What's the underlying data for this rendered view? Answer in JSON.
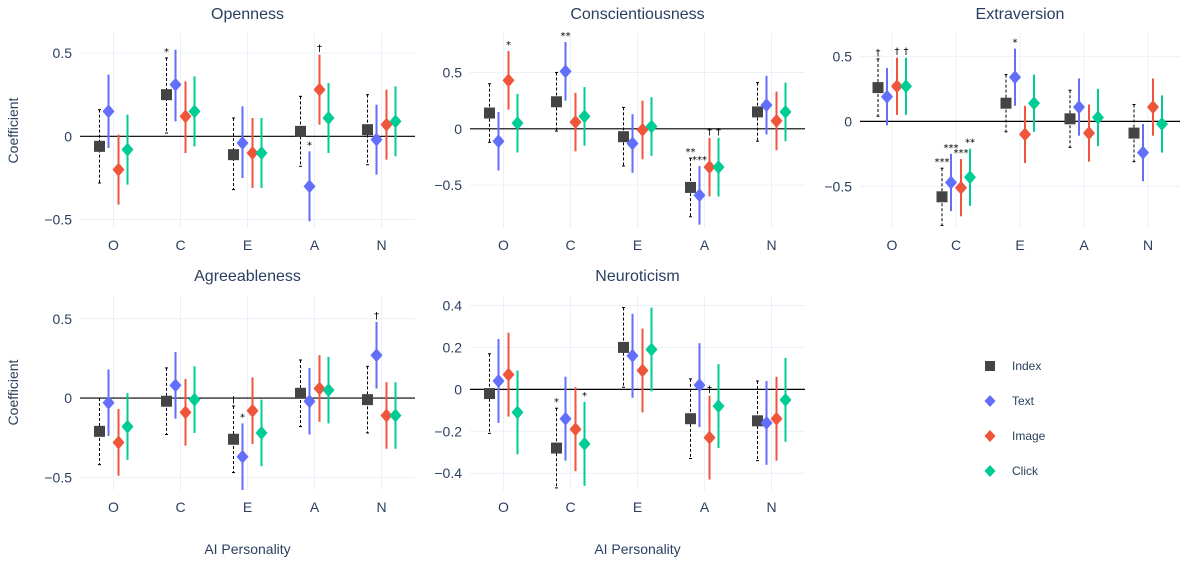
{
  "colors": {
    "Index": "#444444",
    "Text": "#636efa",
    "Image": "#ef553b",
    "Click": "#00cc96",
    "grid": "#ebf0f8",
    "zero": "#000000",
    "text": "#2a3f5f"
  },
  "chart_data": {
    "type": "scatter",
    "xlabel": "AI Personality",
    "ylabel": "Coefficient",
    "series_names": [
      "Index",
      "Text",
      "Image",
      "Click"
    ],
    "categories": [
      "O",
      "C",
      "E",
      "A",
      "N"
    ],
    "legend": {
      "placement": "right",
      "entries": [
        "Index",
        "Text",
        "Image",
        "Click"
      ]
    },
    "panels": [
      {
        "title": "Openness",
        "ylim": [
          -0.55,
          0.62
        ],
        "yticks": [
          0.5,
          0,
          -0.5
        ],
        "ytick_labels": [
          "0.5",
          "0",
          "−0.5"
        ],
        "show_ylabel": true,
        "show_xlabel": false,
        "series": [
          {
            "name": "Index",
            "values": [
              -0.06,
              0.25,
              -0.11,
              0.03,
              0.04
            ],
            "lo": [
              -0.28,
              0.02,
              -0.32,
              -0.18,
              -0.17
            ],
            "hi": [
              0.16,
              0.47,
              0.11,
              0.24,
              0.25
            ],
            "sig": [
              "",
              "*",
              "",
              "",
              ""
            ]
          },
          {
            "name": "Text",
            "values": [
              0.15,
              0.31,
              -0.04,
              -0.3,
              -0.02
            ],
            "lo": [
              -0.07,
              0.09,
              -0.25,
              -0.51,
              -0.23
            ],
            "hi": [
              0.37,
              0.52,
              0.18,
              -0.09,
              0.19
            ],
            "sig": [
              "",
              "",
              "",
              "*",
              ""
            ]
          },
          {
            "name": "Image",
            "values": [
              -0.2,
              0.12,
              -0.1,
              0.28,
              0.07
            ],
            "lo": [
              -0.41,
              -0.1,
              -0.31,
              0.07,
              -0.14
            ],
            "hi": [
              0.01,
              0.33,
              0.11,
              0.49,
              0.28
            ],
            "sig": [
              "",
              "",
              "",
              "†",
              ""
            ]
          },
          {
            "name": "Click",
            "values": [
              -0.08,
              0.15,
              -0.1,
              0.11,
              0.09
            ],
            "lo": [
              -0.29,
              -0.06,
              -0.31,
              -0.1,
              -0.12
            ],
            "hi": [
              0.13,
              0.36,
              0.11,
              0.32,
              0.3
            ],
            "sig": [
              "",
              "",
              "",
              "",
              ""
            ]
          }
        ]
      },
      {
        "title": "Conscientiousness",
        "ylim": [
          -0.88,
          0.85
        ],
        "yticks": [
          0.5,
          0,
          -0.5
        ],
        "ytick_labels": [
          "0.5",
          "0",
          "−0.5"
        ],
        "show_ylabel": false,
        "show_xlabel": false,
        "series": [
          {
            "name": "Index",
            "values": [
              0.14,
              0.24,
              -0.07,
              -0.52,
              0.15
            ],
            "lo": [
              -0.12,
              -0.02,
              -0.33,
              -0.78,
              -0.11
            ],
            "hi": [
              0.4,
              0.5,
              0.19,
              -0.26,
              0.41
            ],
            "sig": [
              "",
              "",
              "",
              "**",
              ""
            ]
          },
          {
            "name": "Text",
            "values": [
              -0.11,
              0.51,
              -0.13,
              -0.59,
              0.21
            ],
            "lo": [
              -0.37,
              0.25,
              -0.39,
              -0.85,
              -0.05
            ],
            "hi": [
              0.15,
              0.77,
              0.13,
              -0.33,
              0.47
            ],
            "sig": [
              "",
              "**",
              "",
              "***",
              ""
            ]
          },
          {
            "name": "Image",
            "values": [
              0.43,
              0.06,
              -0.01,
              -0.34,
              0.07
            ],
            "lo": [
              0.17,
              -0.2,
              -0.27,
              -0.6,
              -0.19
            ],
            "hi": [
              0.69,
              0.32,
              0.25,
              -0.08,
              0.33
            ],
            "sig": [
              "*",
              "",
              "",
              "†",
              ""
            ]
          },
          {
            "name": "Click",
            "values": [
              0.05,
              0.11,
              0.02,
              -0.34,
              0.15
            ],
            "lo": [
              -0.21,
              -0.15,
              -0.24,
              -0.6,
              -0.11
            ],
            "hi": [
              0.31,
              0.37,
              0.28,
              -0.08,
              0.41
            ],
            "sig": [
              "",
              "",
              "",
              "†",
              ""
            ]
          }
        ]
      },
      {
        "title": "Extraversion",
        "ylim": [
          -0.82,
          0.68
        ],
        "yticks": [
          0.5,
          0,
          -0.5
        ],
        "ytick_labels": [
          "0.5",
          "0",
          "−0.5"
        ],
        "show_ylabel": false,
        "show_xlabel": false,
        "series": [
          {
            "name": "Index",
            "values": [
              0.26,
              -0.58,
              0.14,
              0.02,
              -0.09
            ],
            "lo": [
              0.04,
              -0.8,
              -0.08,
              -0.2,
              -0.31
            ],
            "hi": [
              0.48,
              -0.36,
              0.36,
              0.24,
              0.13
            ],
            "sig": [
              "†",
              "***",
              "",
              "",
              ""
            ]
          },
          {
            "name": "Text",
            "values": [
              0.19,
              -0.47,
              0.34,
              0.11,
              -0.24
            ],
            "lo": [
              -0.03,
              -0.69,
              0.12,
              -0.11,
              -0.46
            ],
            "hi": [
              0.41,
              -0.25,
              0.56,
              0.33,
              -0.02
            ],
            "sig": [
              "",
              "***",
              "*",
              "",
              ""
            ]
          },
          {
            "name": "Image",
            "values": [
              0.27,
              -0.51,
              -0.1,
              -0.09,
              0.11
            ],
            "lo": [
              0.05,
              -0.73,
              -0.32,
              -0.31,
              -0.11
            ],
            "hi": [
              0.49,
              -0.29,
              0.12,
              0.13,
              0.33
            ],
            "sig": [
              "†",
              "***",
              "",
              "",
              ""
            ]
          },
          {
            "name": "Click",
            "values": [
              0.27,
              -0.43,
              0.14,
              0.03,
              -0.02
            ],
            "lo": [
              0.05,
              -0.65,
              -0.08,
              -0.19,
              -0.24
            ],
            "hi": [
              0.49,
              -0.21,
              0.36,
              0.25,
              0.2
            ],
            "sig": [
              "†",
              "**",
              "",
              "",
              ""
            ]
          }
        ]
      },
      {
        "title": "Agreeableness",
        "ylim": [
          -0.58,
          0.65
        ],
        "yticks": [
          0.5,
          0,
          -0.5
        ],
        "ytick_labels": [
          "0.5",
          "0",
          "−0.5"
        ],
        "show_ylabel": true,
        "show_xlabel": true,
        "series": [
          {
            "name": "Index",
            "values": [
              -0.21,
              -0.02,
              -0.26,
              0.03,
              -0.01
            ],
            "lo": [
              -0.42,
              -0.23,
              -0.47,
              -0.18,
              -0.22
            ],
            "hi": [
              0.0,
              0.19,
              -0.05,
              0.24,
              0.2
            ],
            "sig": [
              "",
              "",
              "†",
              "",
              ""
            ]
          },
          {
            "name": "Text",
            "values": [
              -0.03,
              0.08,
              -0.37,
              -0.02,
              0.27
            ],
            "lo": [
              -0.24,
              -0.13,
              -0.58,
              -0.23,
              0.06
            ],
            "hi": [
              0.18,
              0.29,
              -0.16,
              0.19,
              0.48
            ],
            "sig": [
              "",
              "",
              "*",
              "",
              "†"
            ]
          },
          {
            "name": "Image",
            "values": [
              -0.28,
              -0.09,
              -0.08,
              0.06,
              -0.11
            ],
            "lo": [
              -0.49,
              -0.3,
              -0.29,
              -0.15,
              -0.32
            ],
            "hi": [
              -0.07,
              0.12,
              0.13,
              0.27,
              0.1
            ],
            "sig": [
              "",
              "",
              "",
              "",
              ""
            ]
          },
          {
            "name": "Click",
            "values": [
              -0.18,
              -0.01,
              -0.22,
              0.05,
              -0.11
            ],
            "lo": [
              -0.39,
              -0.22,
              -0.43,
              -0.16,
              -0.32
            ],
            "hi": [
              0.03,
              0.2,
              -0.01,
              0.26,
              0.1
            ],
            "sig": [
              "",
              "",
              "",
              "",
              ""
            ]
          }
        ]
      },
      {
        "title": "Neuroticism",
        "ylim": [
          -0.48,
          0.45
        ],
        "yticks": [
          0.4,
          0.2,
          0,
          -0.2,
          -0.4
        ],
        "ytick_labels": [
          "0.4",
          "0.2",
          "0",
          "−0.2",
          "−0.4"
        ],
        "show_ylabel": false,
        "show_xlabel": true,
        "series": [
          {
            "name": "Index",
            "values": [
              -0.02,
              -0.28,
              0.2,
              -0.14,
              -0.15
            ],
            "lo": [
              -0.21,
              -0.47,
              0.01,
              -0.33,
              -0.34
            ],
            "hi": [
              0.17,
              -0.09,
              0.39,
              0.05,
              0.04
            ],
            "sig": [
              "",
              "*",
              "",
              "",
              ""
            ]
          },
          {
            "name": "Text",
            "values": [
              0.04,
              -0.14,
              0.16,
              0.02,
              -0.16
            ],
            "lo": [
              -0.16,
              -0.34,
              -0.04,
              -0.18,
              -0.36
            ],
            "hi": [
              0.24,
              0.06,
              0.36,
              0.22,
              0.04
            ],
            "sig": [
              "",
              "",
              "",
              "",
              ""
            ]
          },
          {
            "name": "Image",
            "values": [
              0.07,
              -0.19,
              0.09,
              -0.23,
              -0.14
            ],
            "lo": [
              -0.13,
              -0.39,
              -0.11,
              -0.43,
              -0.34
            ],
            "hi": [
              0.27,
              0.01,
              0.29,
              -0.03,
              0.06
            ],
            "sig": [
              "",
              "",
              "",
              "†",
              ""
            ]
          },
          {
            "name": "Click",
            "values": [
              -0.11,
              -0.26,
              0.19,
              -0.08,
              -0.05
            ],
            "lo": [
              -0.31,
              -0.46,
              -0.01,
              -0.28,
              -0.25
            ],
            "hi": [
              0.09,
              -0.06,
              0.39,
              0.12,
              0.15
            ],
            "sig": [
              "",
              "*",
              "",
              "",
              ""
            ]
          }
        ]
      }
    ]
  }
}
